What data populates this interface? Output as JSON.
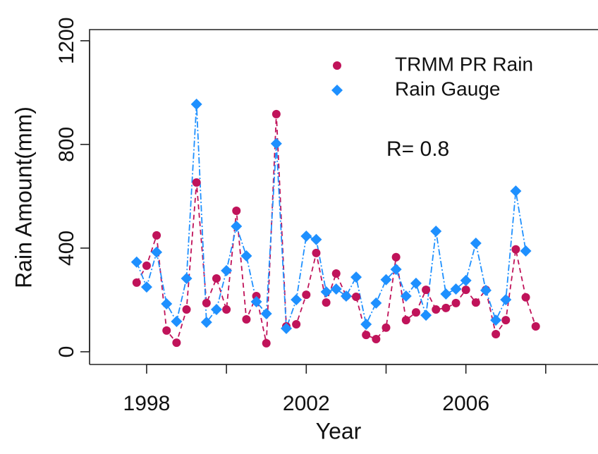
{
  "chart_data": {
    "type": "line",
    "x_label": "Year",
    "y_label": "Rain Amount(mm)",
    "annotation": "R= 0.8",
    "x": [
      1997.75,
      1998,
      1998.25,
      1998.5,
      1998.75,
      1999,
      1999.25,
      1999.5,
      1999.75,
      2000,
      2000.25,
      2000.5,
      2000.75,
      2001,
      2001.25,
      2001.5,
      2001.75,
      2002,
      2002.25,
      2002.5,
      2002.75,
      2003,
      2003.25,
      2003.5,
      2003.75,
      2004,
      2004.25,
      2004.5,
      2004.75,
      2005,
      2005.25,
      2005.5,
      2005.75,
      2006,
      2006.25,
      2006.5,
      2006.75,
      2007,
      2007.25,
      2007.5,
      2007.75
    ],
    "series": [
      {
        "name": "TRMM PR Rain",
        "color": "#c0135a",
        "marker": "circle",
        "dash": "7 5",
        "values": [
          267,
          332,
          449,
          82,
          35,
          163,
          653,
          188,
          283,
          163,
          544,
          125,
          215,
          33,
          917,
          98,
          106,
          220,
          381,
          190,
          302,
          215,
          212,
          65,
          49,
          93,
          365,
          122,
          152,
          239,
          163,
          169,
          188,
          239,
          190,
          239,
          68,
          122,
          395,
          210,
          98
        ]
      },
      {
        "name": "Rain Gauge",
        "color": "#1e90ff",
        "marker": "diamond",
        "dash": "9 3 2 3",
        "values": [
          346,
          250,
          384,
          185,
          117,
          283,
          955,
          114,
          163,
          313,
          484,
          370,
          193,
          147,
          803,
          90,
          201,
          446,
          433,
          231,
          242,
          215,
          288,
          106,
          188,
          278,
          318,
          215,
          264,
          141,
          465,
          223,
          242,
          275,
          419,
          237,
          122,
          201,
          620,
          389,
          null
        ]
      }
    ],
    "xlim": [
      1996.57,
      2009.31
    ],
    "ylim": [
      -49,
      1243
    ],
    "xticks": [
      1998,
      {
        "value": 2000,
        "label": null
      },
      2002,
      {
        "value": 2004,
        "label": null
      },
      2006,
      {
        "value": 2008,
        "label": null
      }
    ],
    "yticks": [
      0,
      400,
      800,
      1200
    ],
    "legend": "top-right"
  }
}
